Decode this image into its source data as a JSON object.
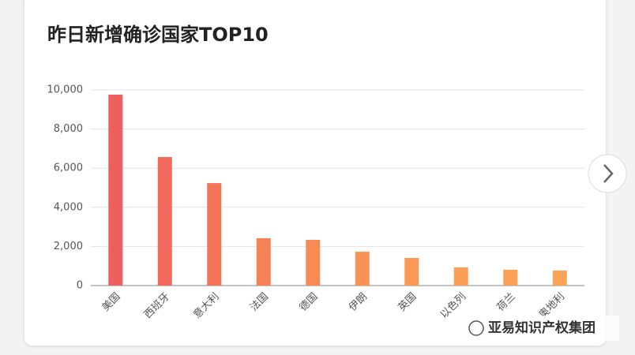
{
  "chart_data": {
    "type": "bar",
    "title": "昨日新增确诊国家TOP10",
    "categories": [
      "美国",
      "西班牙",
      "意大利",
      "法国",
      "德国",
      "伊朗",
      "英国",
      "以色列",
      "荷兰",
      "奥地利"
    ],
    "values": [
      9760,
      6570,
      5240,
      2420,
      2340,
      1730,
      1410,
      930,
      810,
      770
    ],
    "colors": [
      "#ef5f5f",
      "#f16a5c",
      "#f37559",
      "#f58157",
      "#f78b56",
      "#f89355",
      "#f99955",
      "#fa9e56",
      "#fba157",
      "#fba458"
    ],
    "ylim": [
      0,
      10000
    ],
    "yticks": [
      0,
      {
        "value": 2000,
        "label": "2,000"
      },
      {
        "value": 4000,
        "label": "4,000"
      },
      {
        "value": 6000,
        "label": "6,000"
      },
      {
        "value": 8000,
        "label": "8,000"
      },
      {
        "value": 10000,
        "label": "10,000"
      }
    ],
    "grid": true
  },
  "watermark": "亚易知识产权集团"
}
